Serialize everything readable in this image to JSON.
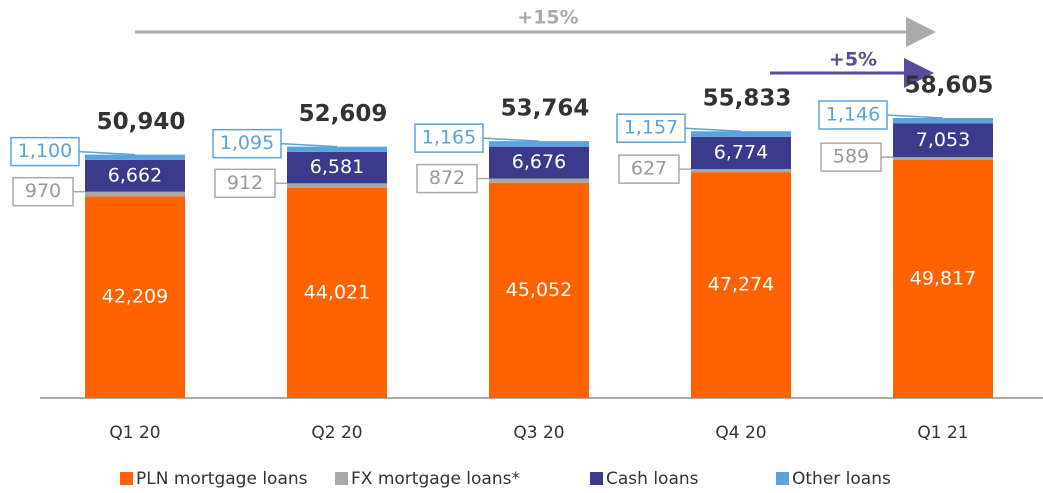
{
  "chart_data": {
    "type": "bar",
    "stacked": true,
    "categories": [
      "Q1 20",
      "Q2 20",
      "Q3 20",
      "Q4 20",
      "Q1 21"
    ],
    "series": [
      {
        "name": "PLN mortgage loans",
        "color": "#ff6200",
        "values": [
          42209,
          44021,
          45052,
          47274,
          49817
        ],
        "value_labels": [
          "42,209",
          "44,021",
          "45,052",
          "47,274",
          "49,817"
        ]
      },
      {
        "name": "FX mortgage loans*",
        "color": "#a8a8a8",
        "values": [
          970,
          912,
          872,
          627,
          589
        ]
      },
      {
        "name": "Cash loans",
        "color": "#3b3a8c",
        "values": [
          6662,
          6581,
          6676,
          6774,
          7053
        ],
        "value_labels": [
          "6,662",
          "6,581",
          "6,676",
          "6,774",
          "7,053"
        ]
      },
      {
        "name": "Other loans",
        "color": "#5ba3dc",
        "values": [
          1100,
          1095,
          1165,
          1157,
          1146
        ],
        "value_labels": [
          "1,100",
          "1,095",
          "1,165",
          "1,157",
          "1,146"
        ]
      }
    ],
    "totals": {
      "values": [
        50940,
        52609,
        53764,
        55833,
        58605
      ],
      "value_labels": [
        "50,940",
        "52,609",
        "53,764",
        "55,833",
        "58,605"
      ]
    },
    "annotations": [
      "+15%",
      "+5%"
    ]
  }
}
